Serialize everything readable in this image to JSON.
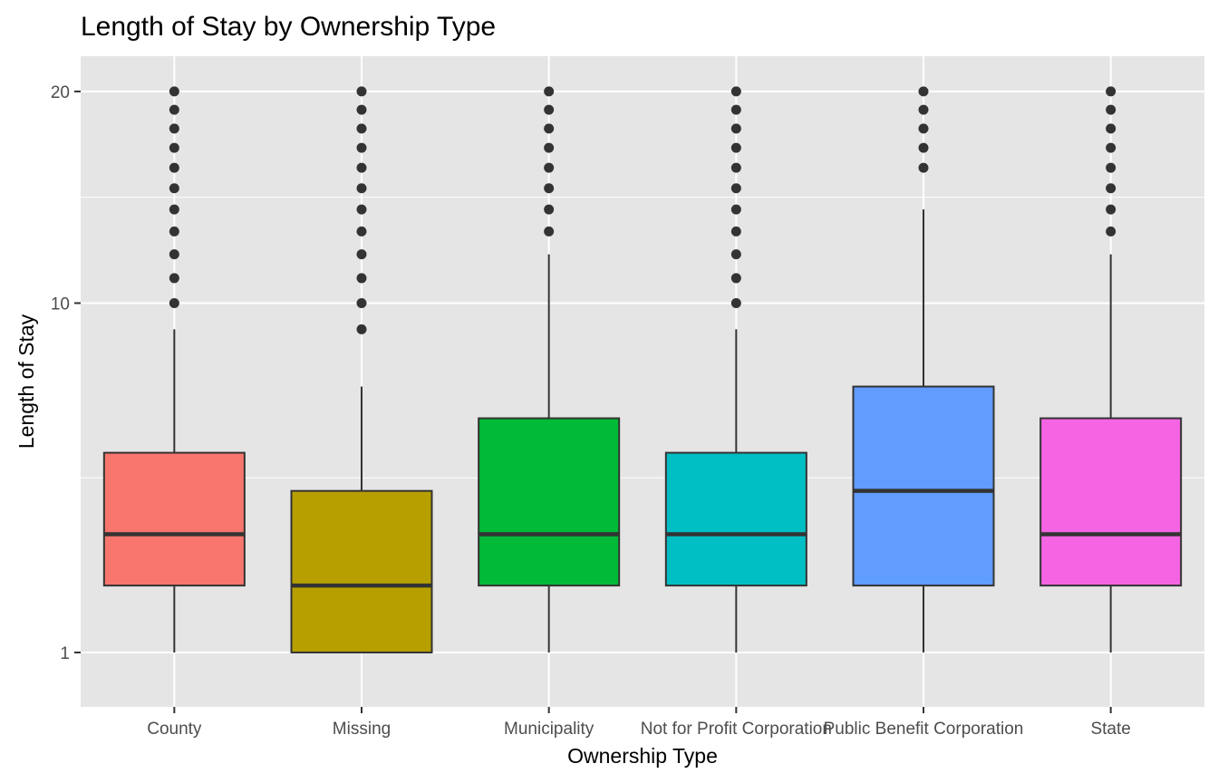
{
  "chart_data": {
    "type": "boxplot",
    "title": "Length of Stay by Ownership Type",
    "xlabel": "Ownership Type",
    "ylabel": "Length of Stay",
    "y_scale": "sqrt",
    "ylim": [
      0.44,
      22
    ],
    "y_ticks": [
      1,
      10,
      20
    ],
    "y_tick_labels": [
      "1",
      "10",
      "20"
    ],
    "grid": true,
    "legend": "none",
    "categories": [
      "County",
      "Missing",
      "Municipality",
      "Not for Profit Corporation",
      "Public Benefit Corporation",
      "State"
    ],
    "boxes": [
      {
        "category": "County",
        "color": "#F8766D",
        "whisker_low": 1,
        "q1": 2,
        "median": 3,
        "q3": 5,
        "whisker_high": 9,
        "outliers": [
          10,
          11,
          12,
          13,
          14,
          15,
          16,
          17,
          18,
          19,
          20
        ]
      },
      {
        "category": "Missing",
        "color": "#B79F00",
        "whisker_low": 1,
        "q1": 1,
        "median": 2,
        "q3": 4,
        "whisker_high": 7,
        "outliers": [
          9,
          10,
          11,
          12,
          13,
          14,
          15,
          16,
          17,
          18,
          19,
          20
        ]
      },
      {
        "category": "Municipality",
        "color": "#00BA38",
        "whisker_low": 1,
        "q1": 2,
        "median": 3,
        "q3": 6,
        "whisker_high": 12,
        "outliers": [
          13,
          14,
          15,
          16,
          17,
          18,
          19,
          20
        ]
      },
      {
        "category": "Not for Profit Corporation",
        "color": "#00BFC4",
        "whisker_low": 1,
        "q1": 2,
        "median": 3,
        "q3": 5,
        "whisker_high": 9,
        "outliers": [
          10,
          11,
          12,
          13,
          14,
          15,
          16,
          17,
          18,
          19,
          20
        ]
      },
      {
        "category": "Public Benefit Corporation",
        "color": "#619CFF",
        "whisker_low": 1,
        "q1": 2,
        "median": 4,
        "q3": 7,
        "whisker_high": 14,
        "outliers": [
          16,
          17,
          18,
          19,
          20
        ]
      },
      {
        "category": "State",
        "color": "#F564E3",
        "whisker_low": 1,
        "q1": 2,
        "median": 3,
        "q3": 6,
        "whisker_high": 12,
        "outliers": [
          13,
          14,
          15,
          16,
          17,
          18,
          19,
          20
        ]
      }
    ]
  },
  "colors": {
    "panel_background": "#E5E5E5",
    "grid_line": "#FFFFFF",
    "outline": "#333333"
  }
}
